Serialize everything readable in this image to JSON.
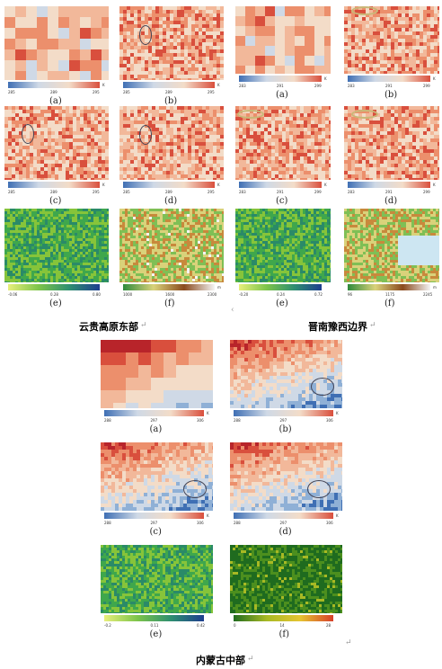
{
  "groups": [
    {
      "caption": "云贵高原东部",
      "panels": [
        {
          "label": "(a)",
          "ticks": [
            "285",
            "289",
            "295"
          ],
          "unit": "K"
        },
        {
          "label": "(b)",
          "ticks": [
            "285",
            "289",
            "295"
          ],
          "unit": "K"
        },
        {
          "label": "(c)",
          "ticks": [
            "285",
            "289",
            "295"
          ],
          "unit": "K"
        },
        {
          "label": "(d)",
          "ticks": [
            "285",
            "289",
            "295"
          ],
          "unit": "K"
        },
        {
          "label": "(e)",
          "ticks": [
            "-0.06",
            "0.28",
            "0.80"
          ],
          "unit": ""
        },
        {
          "label": "(f)",
          "ticks": [
            "1000",
            "1600",
            "2300"
          ],
          "unit": "m"
        }
      ]
    },
    {
      "caption": "晋南豫西边界",
      "panels": [
        {
          "label": "(a)",
          "ticks": [
            "283",
            "291",
            "299"
          ],
          "unit": "K"
        },
        {
          "label": "(b)",
          "ticks": [
            "283",
            "291",
            "299"
          ],
          "unit": "K"
        },
        {
          "label": "(c)",
          "ticks": [
            "283",
            "291",
            "299"
          ],
          "unit": "K"
        },
        {
          "label": "(d)",
          "ticks": [
            "283",
            "291",
            "299"
          ],
          "unit": "K"
        },
        {
          "label": "(e)",
          "ticks": [
            "-0.20",
            "0.24",
            "0.72"
          ],
          "unit": ""
        },
        {
          "label": "(f)",
          "ticks": [
            "96",
            "1175",
            "2245"
          ],
          "unit": "m"
        }
      ]
    },
    {
      "caption": "内蒙古中部",
      "panels": [
        {
          "label": "(a)",
          "ticks": [
            "288",
            "297",
            "306"
          ],
          "unit": "K"
        },
        {
          "label": "(b)",
          "ticks": [
            "288",
            "297",
            "306"
          ],
          "unit": "K"
        },
        {
          "label": "(c)",
          "ticks": [
            "288",
            "297",
            "306"
          ],
          "unit": "K"
        },
        {
          "label": "(d)",
          "ticks": [
            "288",
            "297",
            "306"
          ],
          "unit": "K"
        },
        {
          "label": "(e)",
          "ticks": [
            "-0.2",
            "0.11",
            "0.42"
          ],
          "unit": ""
        },
        {
          "label": "(f)",
          "ticks": [
            "0",
            "14",
            "28"
          ],
          "unit": ""
        }
      ]
    }
  ],
  "marks": {
    "return_char": "↵",
    "small_arrow": "‹"
  }
}
